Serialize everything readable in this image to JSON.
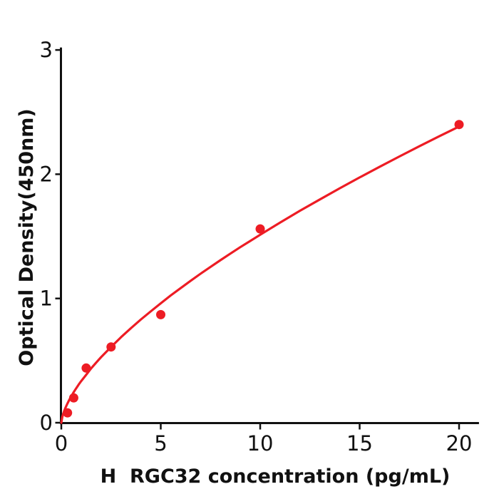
{
  "figure": {
    "background": "#ffffff"
  },
  "chart_data": {
    "type": "scatter",
    "title": "",
    "xlabel": "H  RGC32 concentration (pg/mL)",
    "ylabel": "Optical Density(450nm)",
    "xlim": [
      0,
      21
    ],
    "ylim": [
      0,
      3.02
    ],
    "x_ticks": [
      0,
      5,
      10,
      15,
      20
    ],
    "y_ticks": [
      0,
      1,
      2,
      3
    ],
    "grid": false,
    "legend": false,
    "marker_color": "#ed1c24",
    "line_color": "#ed1c24",
    "axis_color": "#111111",
    "series": [
      {
        "name": "standard-data-points",
        "type": "scatter",
        "x": [
          0.313,
          0.625,
          1.25,
          2.5,
          5,
          10,
          20
        ],
        "y": [
          0.08,
          0.2,
          0.44,
          0.61,
          0.87,
          1.56,
          2.4
        ]
      },
      {
        "name": "fitted-curve",
        "type": "line",
        "fit": "OD = 0.335 * conc^0.655",
        "points": [
          [
            0,
            0
          ],
          [
            0.05,
            0.047
          ],
          [
            0.1,
            0.074
          ],
          [
            0.15,
            0.097
          ],
          [
            0.2,
            0.117
          ],
          [
            0.3,
            0.152
          ],
          [
            0.4,
            0.184
          ],
          [
            0.5,
            0.213
          ],
          [
            0.625,
            0.246
          ],
          [
            0.7,
            0.265
          ],
          [
            0.8,
            0.289
          ],
          [
            0.9,
            0.313
          ],
          [
            1,
            0.335
          ],
          [
            1.25,
            0.386
          ],
          [
            1.5,
            0.437
          ],
          [
            1.75,
            0.483
          ],
          [
            2,
            0.528
          ],
          [
            2.5,
            0.61
          ],
          [
            3,
            0.688
          ],
          [
            3.5,
            0.761
          ],
          [
            4,
            0.831
          ],
          [
            4.5,
            0.897
          ],
          [
            5,
            0.961
          ],
          [
            5.5,
            1.024
          ],
          [
            6,
            1.083
          ],
          [
            6.5,
            1.142
          ],
          [
            7,
            1.199
          ],
          [
            7.5,
            1.254
          ],
          [
            8,
            1.308
          ],
          [
            8.5,
            1.361
          ],
          [
            9,
            1.413
          ],
          [
            9.5,
            1.463
          ],
          [
            10,
            1.513
          ],
          [
            11,
            1.611
          ],
          [
            12,
            1.706
          ],
          [
            13,
            1.797
          ],
          [
            14,
            1.887
          ],
          [
            15,
            1.974
          ],
          [
            16,
            2.059
          ],
          [
            17,
            2.143
          ],
          [
            18,
            2.225
          ],
          [
            19,
            2.305
          ],
          [
            20,
            2.384
          ]
        ]
      }
    ]
  }
}
